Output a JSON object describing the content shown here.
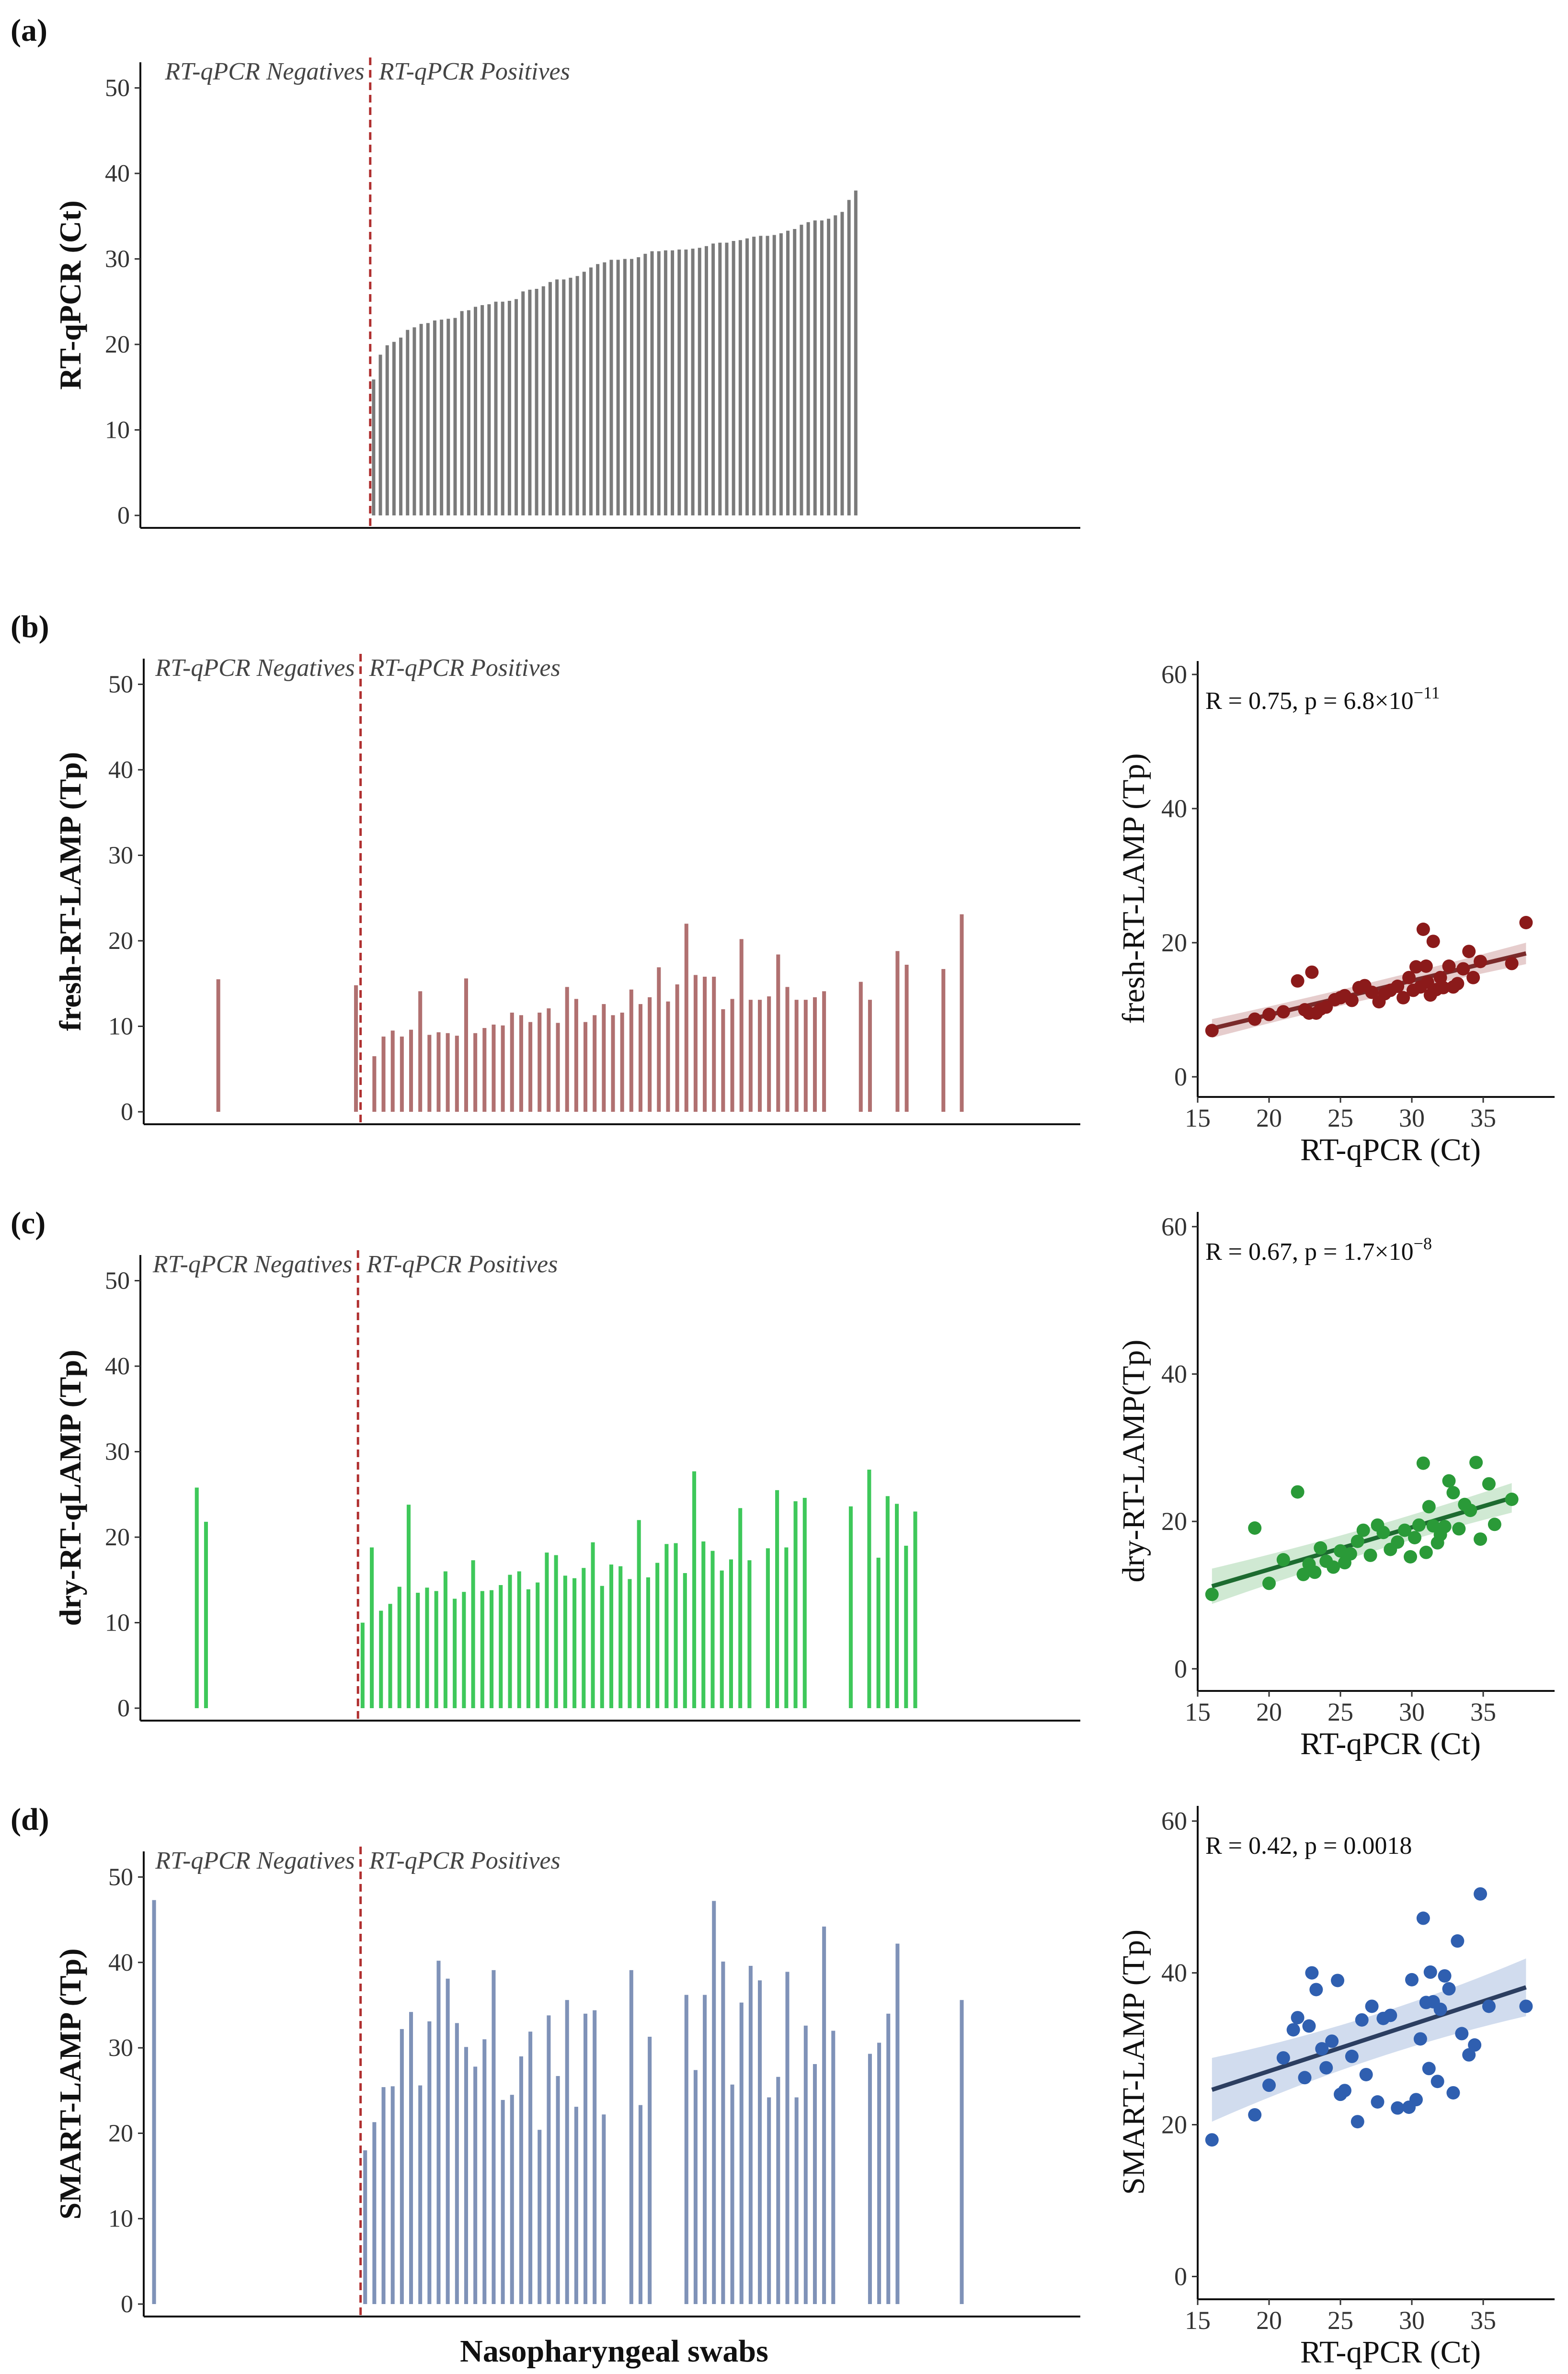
{
  "colors": {
    "ct": "#7a7a7a",
    "fresh": "#b07070",
    "dry": "#3ec85a",
    "smart": "#7f92b8",
    "fresh_dot": "#8b1a1a",
    "dry_dot": "#2a9a38",
    "smart_dot": "#2f5fb0",
    "fresh_line": "#7a2a2a",
    "dry_line": "#1d6b30",
    "smart_line": "#2c3e60",
    "divider": "#b03030"
  },
  "region_labels": {
    "negatives": "RT-qPCR Negatives",
    "positives": "RT-qPCR Positives"
  },
  "x_title": "Nasopharyngeal swabs",
  "chart_data": [
    {
      "type": "bar",
      "panel": "(a)",
      "ylabel": "RT-qPCR (Ct)",
      "ylim": [
        0,
        53
      ],
      "yticks": [
        0,
        10,
        20,
        30,
        40,
        50
      ],
      "n_positions": 137,
      "divider_after": 32,
      "values": [
        null,
        null,
        null,
        null,
        null,
        null,
        null,
        null,
        null,
        null,
        null,
        null,
        null,
        null,
        null,
        null,
        null,
        null,
        null,
        null,
        null,
        null,
        null,
        null,
        null,
        null,
        null,
        null,
        null,
        null,
        null,
        null,
        null,
        15.9,
        18.8,
        19.9,
        20.3,
        20.8,
        21.7,
        22,
        22.4,
        22.5,
        22.8,
        22.9,
        23,
        23.1,
        23.9,
        24,
        24.4,
        24.6,
        24.7,
        25,
        25,
        25.1,
        25.3,
        26.2,
        26.4,
        26.5,
        26.8,
        27.3,
        27.6,
        27.6,
        27.8,
        28,
        28.5,
        29,
        29.4,
        29.6,
        29.9,
        29.9,
        30,
        30,
        30.2,
        30.6,
        30.9,
        30.9,
        31,
        31,
        31.1,
        31.1,
        31.2,
        31.3,
        31.5,
        31.8,
        31.9,
        31.9,
        32.1,
        32.2,
        32.4,
        32.6,
        32.7,
        32.7,
        32.8,
        33,
        33.3,
        33.5,
        34,
        34.3,
        34.5,
        34.5,
        34.7,
        35.1,
        35.5,
        36.9,
        38,
        null,
        null,
        null,
        null,
        null,
        null,
        null,
        null,
        null,
        null,
        null,
        null,
        null,
        null,
        null,
        null,
        null,
        null,
        null,
        null,
        null,
        null,
        null,
        null,
        null,
        null,
        null,
        null,
        null,
        null,
        null,
        null
      ]
    },
    {
      "type": "bar",
      "panel": "(b)",
      "ylabel": "fresh-RT-LAMP (Tp)",
      "ylim": [
        0,
        53
      ],
      "yticks": [
        0,
        10,
        20,
        30,
        40,
        50
      ],
      "n_positions": 101,
      "divider_after": 22,
      "values": [
        null,
        null,
        null,
        null,
        null,
        null,
        null,
        15.5,
        null,
        null,
        null,
        null,
        null,
        null,
        null,
        null,
        null,
        null,
        null,
        null,
        null,
        null,
        14.8,
        null,
        6.5,
        8.8,
        9.5,
        8.8,
        9.6,
        14.1,
        9,
        9.3,
        9.2,
        8.9,
        15.6,
        9.2,
        9.8,
        10.2,
        10.1,
        11.6,
        11.3,
        10.5,
        11.6,
        12.1,
        10.4,
        14.6,
        13.2,
        10.5,
        11.3,
        12.6,
        11.3,
        11.6,
        14.3,
        12.6,
        13.4,
        16.9,
        12.9,
        14.9,
        22,
        16,
        15.8,
        15.8,
        12,
        13.2,
        20.2,
        13.1,
        13.1,
        13.5,
        18.4,
        14.6,
        13.1,
        13.1,
        13.4,
        14.1,
        null,
        null,
        null,
        15.2,
        13.1,
        null,
        null,
        18.8,
        17.2,
        null,
        null,
        null,
        16.7,
        null,
        23.1,
        null,
        null,
        null,
        null,
        null,
        null,
        null,
        null,
        null,
        null,
        null,
        null
      ]
    },
    {
      "type": "scatter",
      "panel": "(b)",
      "ylabel": "fresh-RT-LAMP (Tp)",
      "xlabel": "RT-qPCR (Ct)",
      "annotation": "R = 0.75, p = 6.8×10",
      "annotation_exp": "−11",
      "xlim": [
        15,
        40
      ],
      "ylim": [
        -3,
        62
      ],
      "xticks": [
        15,
        20,
        25,
        30,
        35
      ],
      "yticks": [
        0,
        20,
        40,
        60
      ],
      "fit": {
        "x": [
          16,
          38
        ],
        "y": [
          7.2,
          18.4
        ],
        "band": [
          1.4,
          0.9,
          1.6
        ]
      },
      "points": [
        [
          16,
          6.9
        ],
        [
          19,
          8.6
        ],
        [
          20,
          9.3
        ],
        [
          21,
          9.7
        ],
        [
          22,
          14.3
        ],
        [
          22.5,
          10
        ],
        [
          22.8,
          9.5
        ],
        [
          23,
          15.6
        ],
        [
          23.3,
          9.5
        ],
        [
          23.6,
          10.1
        ],
        [
          24,
          10.4
        ],
        [
          24.6,
          11.5
        ],
        [
          25,
          11.8
        ],
        [
          25.3,
          12.1
        ],
        [
          25.8,
          11.4
        ],
        [
          26.3,
          13.3
        ],
        [
          26.7,
          13.6
        ],
        [
          27.2,
          12.6
        ],
        [
          27.7,
          11.2
        ],
        [
          28.1,
          12.4
        ],
        [
          28.5,
          12.9
        ],
        [
          29,
          13.5
        ],
        [
          29.4,
          11.8
        ],
        [
          29.8,
          14.8
        ],
        [
          30.1,
          12.9
        ],
        [
          30.3,
          16.4
        ],
        [
          30.6,
          13.4
        ],
        [
          30.8,
          22
        ],
        [
          31,
          16.5
        ],
        [
          31.1,
          14.1
        ],
        [
          31.3,
          12.2
        ],
        [
          31.5,
          20.2
        ],
        [
          31.7,
          13
        ],
        [
          32,
          14.8
        ],
        [
          32.2,
          13.3
        ],
        [
          32.6,
          16.5
        ],
        [
          32.9,
          13.4
        ],
        [
          33.2,
          13.9
        ],
        [
          33.6,
          16.1
        ],
        [
          34,
          18.7
        ],
        [
          34.3,
          14.8
        ],
        [
          34.8,
          17.2
        ],
        [
          37,
          16.9
        ],
        [
          38,
          23
        ]
      ]
    },
    {
      "type": "bar",
      "panel": "(c)",
      "ylabel": "dry-RT-qLAMP (Tp)",
      "ylim": [
        0,
        53
      ],
      "yticks": [
        0,
        10,
        20,
        30,
        40,
        50
      ],
      "n_positions": 101,
      "divider_after": 22,
      "values": [
        null,
        null,
        null,
        null,
        null,
        25.8,
        21.8,
        null,
        null,
        null,
        null,
        null,
        null,
        null,
        null,
        null,
        null,
        null,
        null,
        null,
        null,
        null,
        null,
        10,
        18.8,
        11.4,
        12.2,
        14.2,
        23.8,
        13.5,
        14.1,
        13.7,
        16,
        12.8,
        13.6,
        17.3,
        13.7,
        13.8,
        14.4,
        15.6,
        16,
        13.9,
        14.7,
        18.2,
        17.9,
        15.5,
        15.2,
        16.4,
        19.4,
        14.3,
        16.8,
        16.6,
        15.1,
        22,
        15.3,
        17,
        19.2,
        19.3,
        15.8,
        27.7,
        19.5,
        18.4,
        16.1,
        17.4,
        23.4,
        17.3,
        null,
        18.7,
        25.5,
        18.8,
        24.2,
        24.6,
        null,
        null,
        null,
        null,
        23.6,
        null,
        27.9,
        17.6,
        24.8,
        23.9,
        19,
        23,
        null,
        null,
        null,
        null,
        null,
        null,
        null,
        null,
        null,
        null,
        null,
        null,
        null,
        null,
        null,
        null,
        null
      ]
    },
    {
      "type": "scatter",
      "panel": "(c)",
      "ylabel": "dry-RT-LAMP(Tp)",
      "xlabel": "RT-qPCR (Ct)",
      "annotation": "R = 0.67, p = 1.7×10",
      "annotation_exp": "−8",
      "xlim": [
        15,
        40
      ],
      "ylim": [
        -3,
        62
      ],
      "xticks": [
        15,
        20,
        25,
        30,
        35
      ],
      "yticks": [
        0,
        20,
        40,
        60
      ],
      "fit": {
        "x": [
          16,
          37
        ],
        "y": [
          11.2,
          23.2
        ],
        "band": [
          2.4,
          1.2,
          2.0
        ]
      },
      "points": [
        [
          16,
          10.1
        ],
        [
          19,
          19.1
        ],
        [
          20,
          11.6
        ],
        [
          21,
          14.8
        ],
        [
          22,
          24
        ],
        [
          22.4,
          12.8
        ],
        [
          22.8,
          14.2
        ],
        [
          23.2,
          13.1
        ],
        [
          23.6,
          16.4
        ],
        [
          24,
          14.6
        ],
        [
          24.5,
          13.8
        ],
        [
          25,
          16
        ],
        [
          25.3,
          14.4
        ],
        [
          25.7,
          15.6
        ],
        [
          26.2,
          17.3
        ],
        [
          26.6,
          18.8
        ],
        [
          27.1,
          15.4
        ],
        [
          27.6,
          19.5
        ],
        [
          28,
          18.5
        ],
        [
          28.5,
          16.2
        ],
        [
          29,
          17.2
        ],
        [
          29.5,
          18.8
        ],
        [
          29.9,
          15.2
        ],
        [
          30.2,
          17.8
        ],
        [
          30.5,
          19.5
        ],
        [
          30.8,
          27.9
        ],
        [
          31,
          15.8
        ],
        [
          31.2,
          22
        ],
        [
          31.5,
          19.4
        ],
        [
          31.8,
          17.1
        ],
        [
          32,
          18.2
        ],
        [
          32.3,
          19.3
        ],
        [
          32.6,
          25.5
        ],
        [
          32.9,
          23.9
        ],
        [
          33.3,
          19
        ],
        [
          33.7,
          22.3
        ],
        [
          34.1,
          21.5
        ],
        [
          34.5,
          28
        ],
        [
          34.8,
          17.6
        ],
        [
          35.4,
          25.1
        ],
        [
          35.8,
          19.6
        ],
        [
          37,
          23
        ]
      ]
    },
    {
      "type": "bar",
      "panel": "(d)",
      "ylabel": "SMART-LAMP (Tp)",
      "ylim": [
        0,
        53
      ],
      "yticks": [
        0,
        10,
        20,
        30,
        40,
        50
      ],
      "n_positions": 101,
      "divider_after": 22,
      "values": [
        47.3,
        null,
        null,
        null,
        null,
        null,
        null,
        null,
        null,
        null,
        null,
        null,
        null,
        null,
        null,
        null,
        null,
        null,
        null,
        null,
        null,
        null,
        null,
        18,
        21.3,
        25.4,
        25.5,
        32.2,
        34.2,
        25.6,
        33.1,
        40.2,
        38.1,
        32.9,
        30.1,
        27.8,
        31,
        39.1,
        23.9,
        24.5,
        29,
        31.9,
        20.4,
        33.8,
        26.7,
        35.6,
        23.1,
        34,
        34.4,
        22.2,
        null,
        null,
        39.1,
        23.3,
        31.3,
        null,
        null,
        null,
        36.2,
        27.4,
        36.2,
        47.2,
        40.1,
        25.7,
        35.3,
        39.6,
        37.9,
        24.2,
        26.6,
        38.9,
        24.2,
        32.6,
        28.1,
        44.2,
        32,
        null,
        null,
        null,
        29.3,
        30.6,
        34,
        42.2,
        null,
        null,
        null,
        null,
        null,
        null,
        35.6,
        null,
        null,
        null,
        null,
        null,
        null,
        null,
        null,
        null,
        null,
        null,
        null
      ]
    },
    {
      "type": "scatter",
      "panel": "(d)",
      "ylabel": "SMART-LAMP (Tp)",
      "xlabel": "RT-qPCR (Ct)",
      "annotation": "R = 0.42, p = 0.0018",
      "annotation_exp": "",
      "xlim": [
        15,
        40
      ],
      "ylim": [
        -3,
        62
      ],
      "xticks": [
        15,
        20,
        25,
        30,
        35
      ],
      "yticks": [
        0,
        20,
        40,
        60
      ],
      "fit": {
        "x": [
          16,
          38
        ],
        "y": [
          24.6,
          38.1
        ],
        "band": [
          4.2,
          1.8,
          3.8
        ]
      },
      "points": [
        [
          16,
          18
        ],
        [
          19,
          21.3
        ],
        [
          20,
          25.2
        ],
        [
          21,
          28.8
        ],
        [
          21.7,
          32.5
        ],
        [
          22,
          34.1
        ],
        [
          22.5,
          26.2
        ],
        [
          22.8,
          33
        ],
        [
          23,
          40
        ],
        [
          23.3,
          37.8
        ],
        [
          23.7,
          30
        ],
        [
          24,
          27.5
        ],
        [
          24.4,
          31
        ],
        [
          24.8,
          39
        ],
        [
          25,
          24
        ],
        [
          25.3,
          24.5
        ],
        [
          25.8,
          29
        ],
        [
          26.2,
          20.4
        ],
        [
          26.5,
          33.8
        ],
        [
          26.8,
          26.6
        ],
        [
          27.2,
          35.6
        ],
        [
          27.6,
          23
        ],
        [
          28,
          34
        ],
        [
          28.5,
          34.4
        ],
        [
          29,
          22.2
        ],
        [
          29.8,
          22.3
        ],
        [
          30,
          39.1
        ],
        [
          30.3,
          23.3
        ],
        [
          30.6,
          31.3
        ],
        [
          31,
          36.1
        ],
        [
          31.2,
          27.4
        ],
        [
          31.5,
          36.2
        ],
        [
          30.8,
          47.2
        ],
        [
          31.3,
          40.1
        ],
        [
          31.8,
          25.7
        ],
        [
          32,
          35.2
        ],
        [
          32.3,
          39.6
        ],
        [
          32.6,
          37.9
        ],
        [
          32.9,
          24.2
        ],
        [
          33.2,
          44.2
        ],
        [
          33.5,
          32
        ],
        [
          34,
          29.2
        ],
        [
          34.4,
          30.5
        ],
        [
          34.8,
          50.4
        ],
        [
          35.4,
          35.6
        ],
        [
          38,
          35.6
        ]
      ]
    }
  ],
  "labels": {
    "panels": [
      "(a)",
      "(b)",
      "(c)",
      "(d)"
    ]
  }
}
